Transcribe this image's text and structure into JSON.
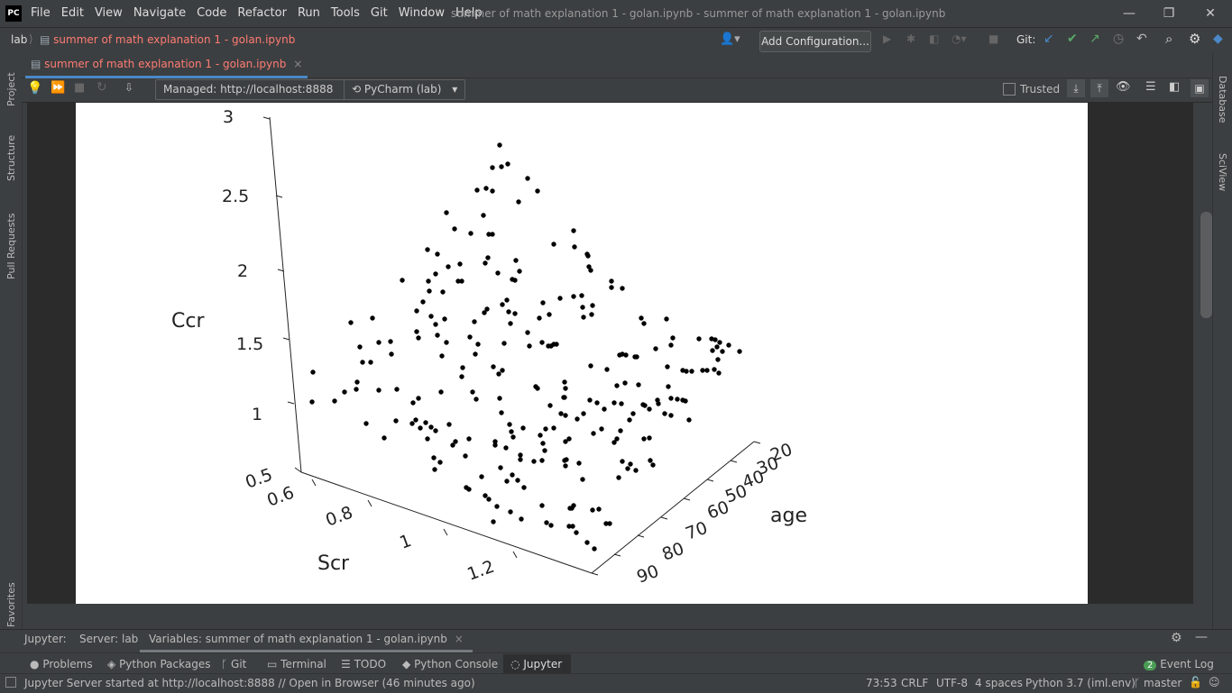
{
  "titlebar": {
    "logo": "PC",
    "menus": [
      "File",
      "Edit",
      "View",
      "Navigate",
      "Code",
      "Refactor",
      "Run",
      "Tools",
      "Git",
      "Window",
      "Help"
    ],
    "window_title": "summer of math explanation 1 - golan.ipynb - summer of math explanation 1 - golan.ipynb",
    "min": "—",
    "restore": "❐",
    "close": "✕"
  },
  "navbar": {
    "project": "lab",
    "file": "summer of math explanation 1 - golan.ipynb",
    "add_configuration": "Add Configuration...",
    "git_label": "Git:"
  },
  "editor_tab": {
    "label": "summer of math explanation 1 - golan.ipynb",
    "close": "×"
  },
  "notebook_toolbar": {
    "server_combo": "Managed: http://localhost:8888",
    "kernel_combo": "PyCharm (lab)",
    "trusted_label": "Trusted"
  },
  "left_tools": [
    "Project",
    "Structure",
    "Pull Requests",
    "Favorites"
  ],
  "right_tools": [
    "Database",
    "SciView"
  ],
  "plot": {
    "zlabel": "Ccr",
    "xlabel": "Scr",
    "ylabel": "age",
    "z_ticks": [
      "3",
      "2.5",
      "2",
      "1.5",
      "1",
      "0.5"
    ],
    "x_ticks": [
      "0.6",
      "0.8",
      "1",
      "1.2"
    ],
    "y_ticks": [
      "20",
      "30",
      "40",
      "50",
      "60",
      "70",
      "80",
      "90"
    ]
  },
  "jupyter_panel": {
    "label": "Jupyter:",
    "server_tab": "Server: lab",
    "variables_tab": "Variables: summer of math explanation 1 - golan.ipynb",
    "variables_close": "×"
  },
  "tool_tabs": [
    "Problems",
    "Python Packages",
    "Git",
    "Terminal",
    "TODO",
    "Python Console",
    "Jupyter"
  ],
  "event_log": {
    "count": "2",
    "label": "Event Log"
  },
  "status": {
    "message": "Jupyter Server started at http://localhost:8888 // Open in Browser (46 minutes ago)",
    "position": "73:53",
    "line_sep": "CRLF",
    "encoding": "UTF-8",
    "indent": "4 spaces",
    "interpreter": "Python 3.7 (iml.env)",
    "branch": "master"
  },
  "colors": {
    "accent": "#4a88c7",
    "modified_file": "#ff7b72",
    "run_green": "#59a869"
  }
}
